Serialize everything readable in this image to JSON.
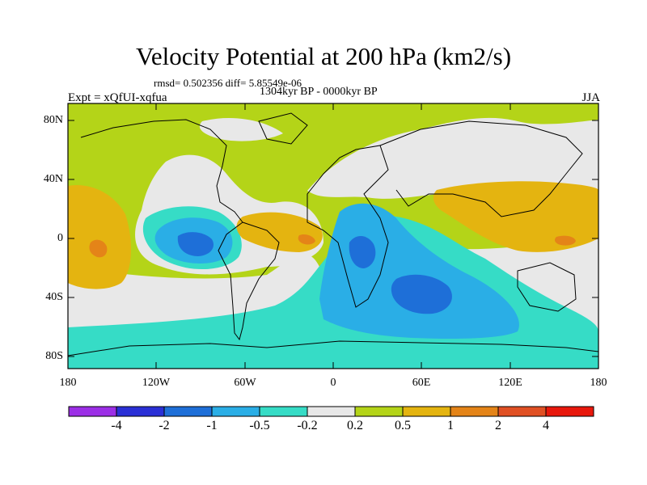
{
  "title": "Velocity Potential at 200 hPa (km2/s)",
  "stats": "rmsd= 0.502356 diff= 5.85549e-06",
  "period": "1304kyr BP - 0000kyr BP",
  "experiment": "Expt = xQfUI-xqfua",
  "season": "JJA",
  "map": {
    "projection": "cylindrical equidistant",
    "lon_range": [
      -180,
      180
    ],
    "lat_range": [
      -90,
      90
    ],
    "lat_ticks": [
      "80N",
      "40N",
      "0",
      "40S",
      "80S"
    ],
    "lon_ticks": [
      "180",
      "120W",
      "60W",
      "0",
      "60E",
      "120E",
      "180"
    ]
  },
  "colorbar": {
    "labels": [
      "-4",
      "-2",
      "-1",
      "-0.5",
      "-0.2",
      "0.2",
      "0.5",
      "1",
      "2",
      "4"
    ],
    "colors": [
      "#9c2fe6",
      "#2a30d6",
      "#1e6fd8",
      "#2aaee6",
      "#36dcc6",
      "#e8e8e8",
      "#b4d418",
      "#e4b410",
      "#e48418",
      "#e05024",
      "#e8180c"
    ]
  }
}
